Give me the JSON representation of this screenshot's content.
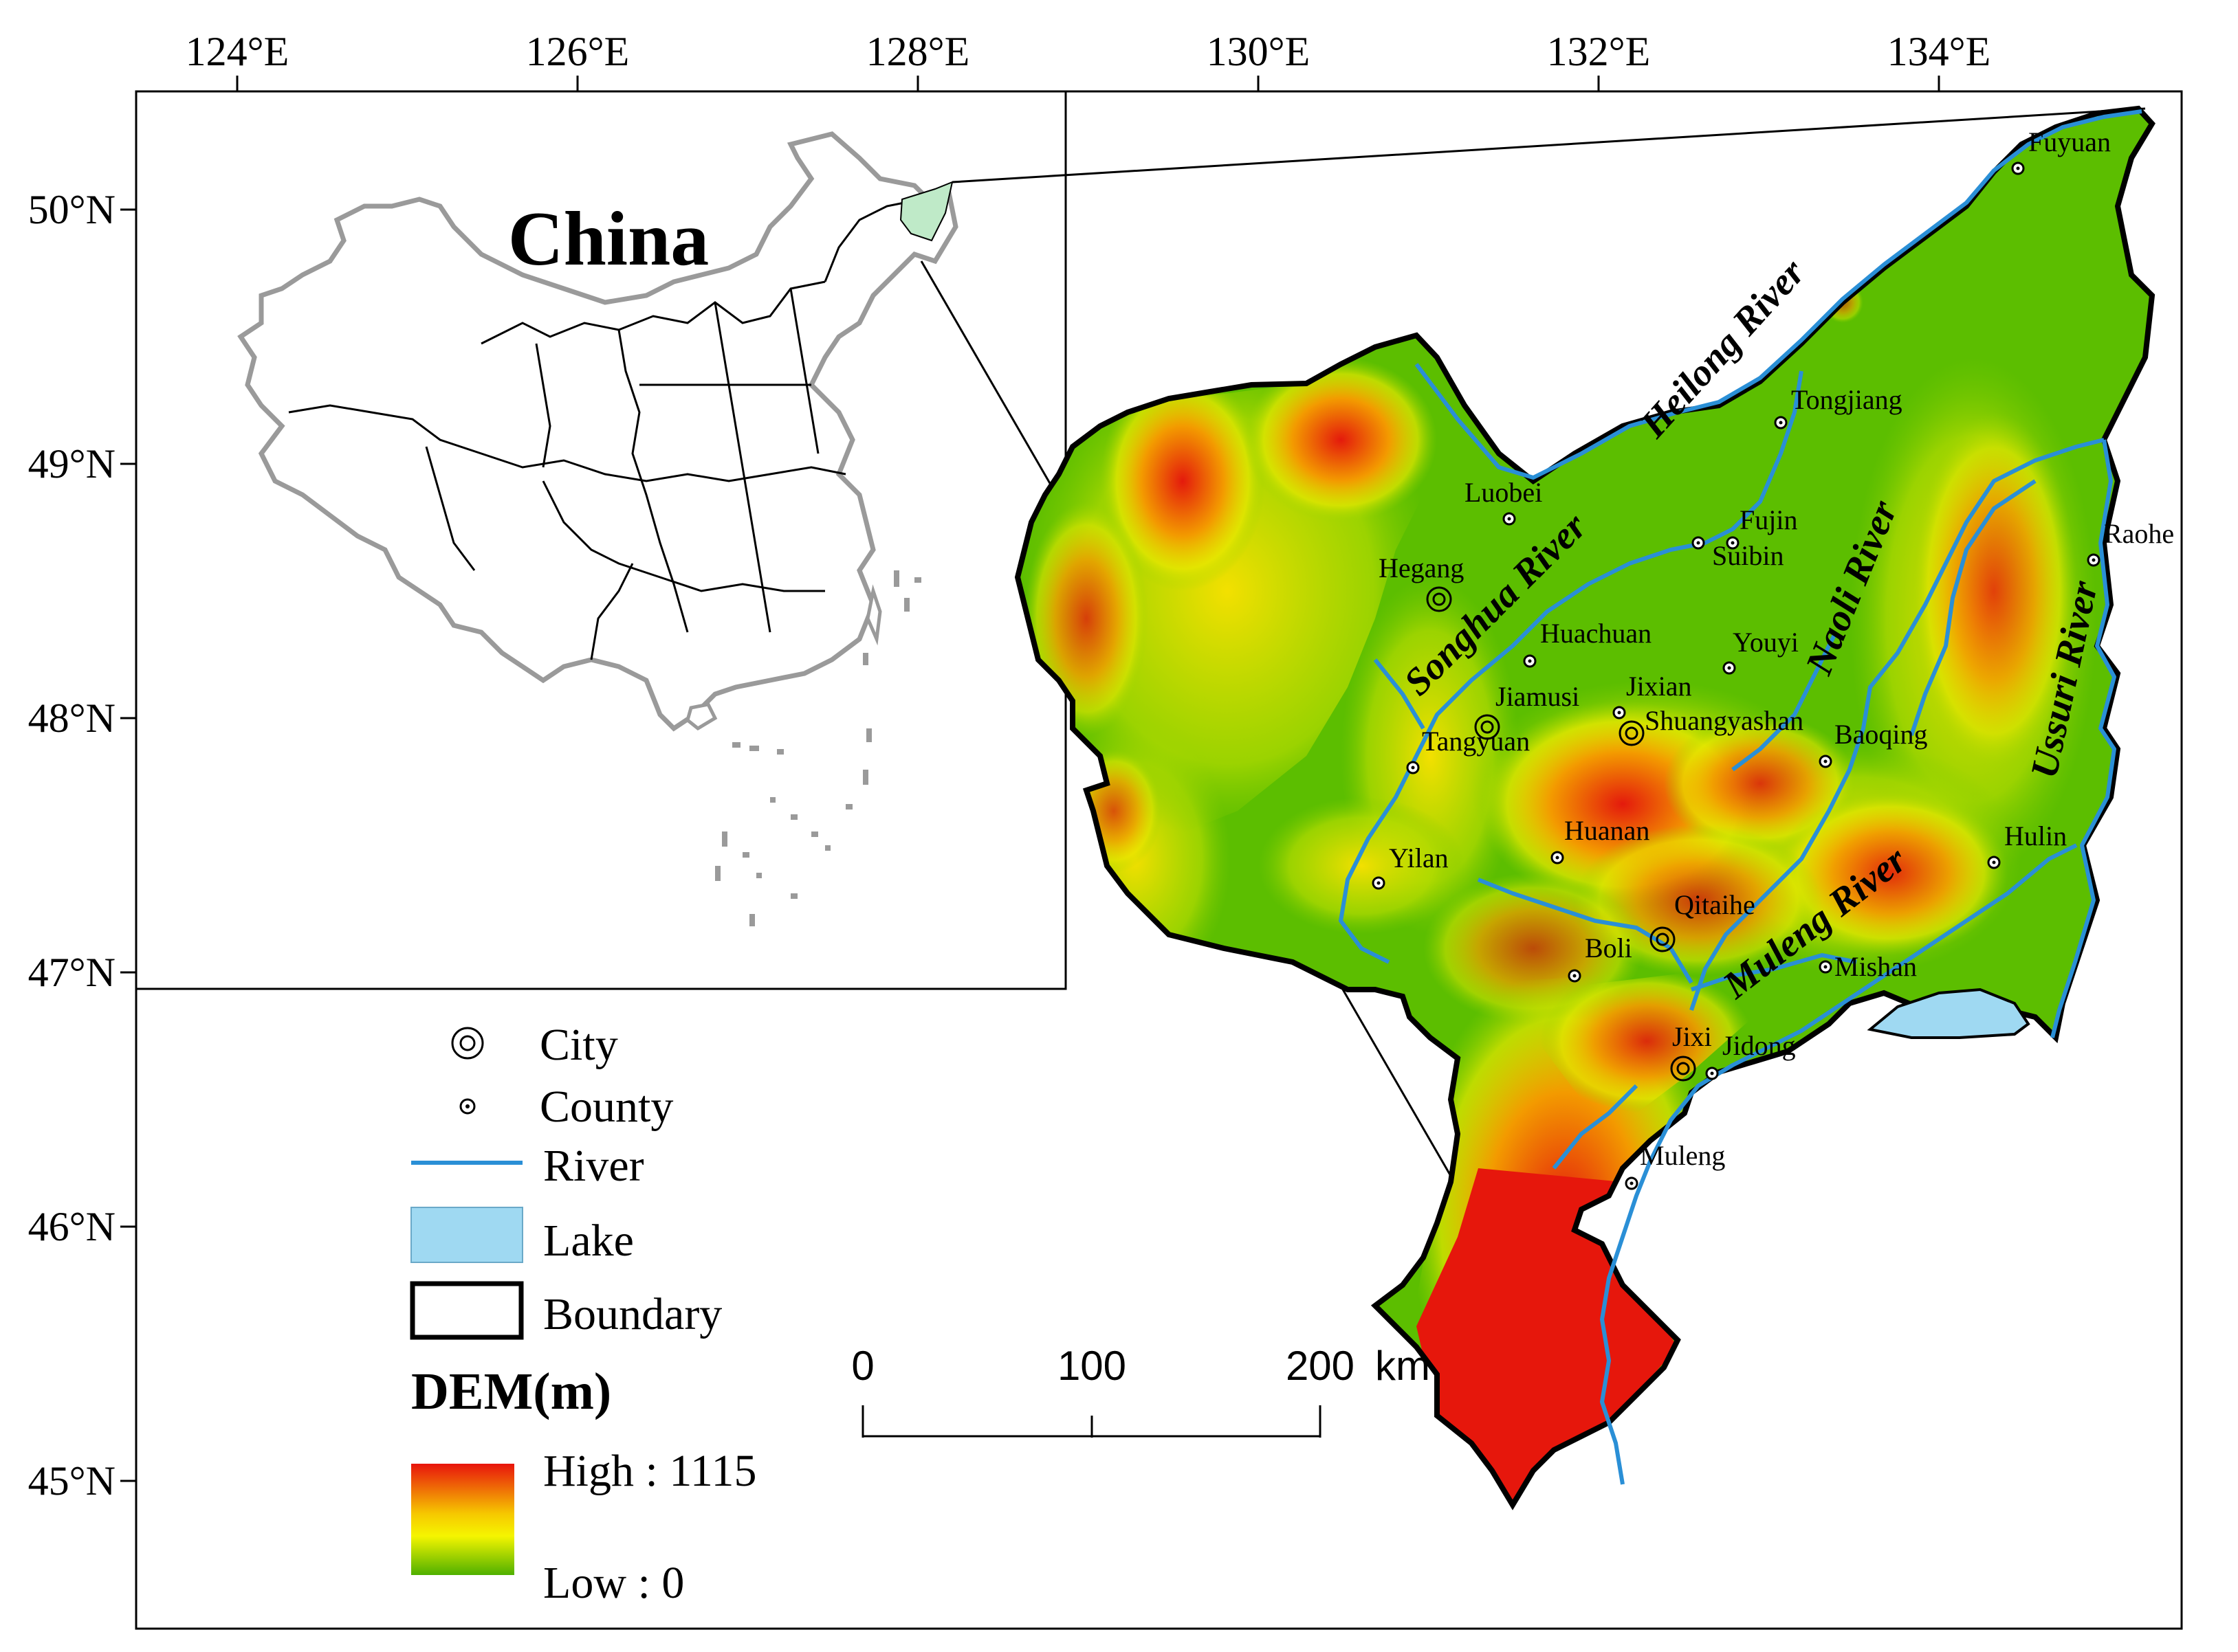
{
  "axes": {
    "lon_labels": [
      "124°E",
      "126°E",
      "128°E",
      "130°E",
      "132°E",
      "134°E"
    ],
    "lat_labels": [
      "50°N",
      "49°N",
      "48°N",
      "47°N",
      "46°N",
      "45°N"
    ]
  },
  "inset": {
    "title": "China"
  },
  "cities": [
    {
      "name": "Fuyuan",
      "type": "county"
    },
    {
      "name": "Tongjiang",
      "type": "county"
    },
    {
      "name": "Luobei",
      "type": "county"
    },
    {
      "name": "Fujin",
      "type": "county"
    },
    {
      "name": "Suibin",
      "type": "county"
    },
    {
      "name": "Raohe",
      "type": "county"
    },
    {
      "name": "Hegang",
      "type": "city"
    },
    {
      "name": "Huachuan",
      "type": "county"
    },
    {
      "name": "Youyi",
      "type": "county"
    },
    {
      "name": "Jixian",
      "type": "county"
    },
    {
      "name": "Jiamusi",
      "type": "city"
    },
    {
      "name": "Shuangyashan",
      "type": "city"
    },
    {
      "name": "Tangyuan",
      "type": "county"
    },
    {
      "name": "Baoqing",
      "type": "county"
    },
    {
      "name": "Huanan",
      "type": "county"
    },
    {
      "name": "Yilan",
      "type": "county"
    },
    {
      "name": "Hulin",
      "type": "county"
    },
    {
      "name": "Qitaihe",
      "type": "city"
    },
    {
      "name": "Boli",
      "type": "county"
    },
    {
      "name": "Mishan",
      "type": "county"
    },
    {
      "name": "Jixi",
      "type": "city"
    },
    {
      "name": "Jidong",
      "type": "county"
    },
    {
      "name": "Muleng",
      "type": "county"
    }
  ],
  "rivers": [
    "Heilong River",
    "Songhua River",
    "Naoli River",
    "Ussuri River",
    "Muleng River"
  ],
  "legend": {
    "city": "City",
    "county": "County",
    "river": "River",
    "lake": "Lake",
    "boundary": "Boundary",
    "dem_title": "DEM(m)",
    "dem_high": "High : 1115",
    "dem_low": "Low : 0"
  },
  "scale_bar": {
    "ticks": [
      "0",
      "100",
      "200"
    ],
    "unit": "km"
  },
  "colors": {
    "river": "#2a8fd6",
    "lake": "#9fd9f2",
    "dem_high": "#e8140c",
    "dem_mid": "#f5f500",
    "dem_low": "#4fb000",
    "plain": "#5cbe00",
    "inset_highlight": "#bfeac8"
  }
}
